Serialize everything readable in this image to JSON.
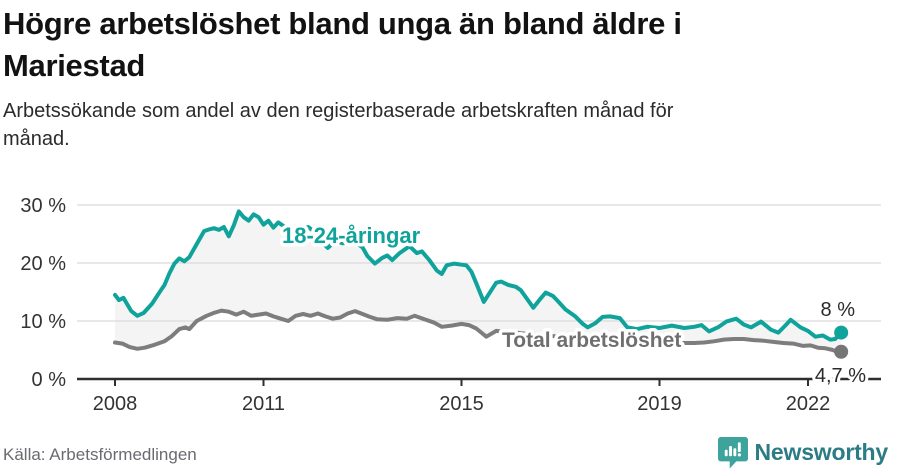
{
  "header": {
    "title": "Högre arbetslöshet bland unga än bland äldre i Mariestad",
    "title_lines": [
      "Högre arbetslöshet bland unga än bland äldre i",
      "Mariestad"
    ],
    "subtitle_lines": [
      "Arbetssökande som andel av den registerbaserade arbetskraften månad för",
      "månad."
    ]
  },
  "chart_data": {
    "type": "line",
    "title": "Högre arbetslöshet bland unga än bland äldre i Mariestad",
    "subtitle": "Arbetssökande som andel av den registerbaserade arbetskraften månad för månad.",
    "x_axis": {
      "ticks": [
        2008,
        2011,
        2015,
        2019,
        2022
      ],
      "tick_labels": [
        "2008",
        "2011",
        "2015",
        "2019",
        "2022"
      ],
      "range": [
        2008,
        2022.75
      ]
    },
    "y_axis": {
      "ticks": [
        0,
        10,
        20,
        30
      ],
      "tick_labels": [
        "0 %",
        "10 %",
        "20 %",
        "30 %"
      ],
      "range": [
        0,
        32
      ],
      "unit": "%",
      "grid": true
    },
    "band_fill": "#f4f4f4",
    "legend_position": "inline-labels",
    "series": [
      {
        "name": "18-24-åringar",
        "color": "#10a39b",
        "end_label": "8 %",
        "end_value": 8,
        "points": [
          [
            2008.0,
            14.5
          ],
          [
            2008.08,
            13.6
          ],
          [
            2008.17,
            14.0
          ],
          [
            2008.33,
            11.7
          ],
          [
            2008.45,
            10.9
          ],
          [
            2008.58,
            11.4
          ],
          [
            2008.75,
            13.0
          ],
          [
            2008.92,
            15.2
          ],
          [
            2009.0,
            16.2
          ],
          [
            2009.1,
            18.2
          ],
          [
            2009.2,
            19.9
          ],
          [
            2009.3,
            20.8
          ],
          [
            2009.4,
            20.3
          ],
          [
            2009.5,
            21.0
          ],
          [
            2009.6,
            22.5
          ],
          [
            2009.7,
            24.0
          ],
          [
            2009.8,
            25.5
          ],
          [
            2009.9,
            25.8
          ],
          [
            2010.0,
            26.0
          ],
          [
            2010.1,
            25.7
          ],
          [
            2010.2,
            26.2
          ],
          [
            2010.3,
            24.6
          ],
          [
            2010.4,
            26.5
          ],
          [
            2010.5,
            28.9
          ],
          [
            2010.6,
            27.9
          ],
          [
            2010.7,
            27.3
          ],
          [
            2010.8,
            28.4
          ],
          [
            2010.9,
            27.9
          ],
          [
            2011.0,
            26.6
          ],
          [
            2011.1,
            27.3
          ],
          [
            2011.2,
            26.1
          ],
          [
            2011.3,
            27.0
          ],
          [
            2011.4,
            26.4
          ],
          [
            2011.5,
            25.2
          ],
          [
            2011.6,
            25.8
          ],
          [
            2011.7,
            26.3
          ],
          [
            2011.8,
            25.9
          ],
          [
            2011.9,
            26.2
          ],
          [
            2012.0,
            25.6
          ],
          [
            2012.1,
            24.3
          ],
          [
            2012.3,
            22.6
          ],
          [
            2012.45,
            23.8
          ],
          [
            2012.6,
            23.4
          ],
          [
            2012.75,
            23.8
          ],
          [
            2012.9,
            23.3
          ],
          [
            2013.0,
            22.7
          ],
          [
            2013.1,
            21.2
          ],
          [
            2013.25,
            19.9
          ],
          [
            2013.4,
            20.9
          ],
          [
            2013.5,
            21.3
          ],
          [
            2013.6,
            20.5
          ],
          [
            2013.75,
            21.7
          ],
          [
            2013.95,
            22.9
          ],
          [
            2014.1,
            21.7
          ],
          [
            2014.2,
            22.0
          ],
          [
            2014.35,
            20.5
          ],
          [
            2014.5,
            18.7
          ],
          [
            2014.6,
            18.1
          ],
          [
            2014.7,
            19.6
          ],
          [
            2014.85,
            19.9
          ],
          [
            2015.0,
            19.7
          ],
          [
            2015.1,
            19.6
          ],
          [
            2015.2,
            18.5
          ],
          [
            2015.3,
            16.5
          ],
          [
            2015.45,
            13.3
          ],
          [
            2015.55,
            14.6
          ],
          [
            2015.7,
            16.6
          ],
          [
            2015.8,
            16.8
          ],
          [
            2015.95,
            16.2
          ],
          [
            2016.1,
            15.9
          ],
          [
            2016.2,
            15.3
          ],
          [
            2016.35,
            13.5
          ],
          [
            2016.45,
            12.3
          ],
          [
            2016.6,
            13.9
          ],
          [
            2016.7,
            14.9
          ],
          [
            2016.85,
            14.3
          ],
          [
            2016.95,
            13.4
          ],
          [
            2017.1,
            12.0
          ],
          [
            2017.3,
            10.8
          ],
          [
            2017.45,
            9.5
          ],
          [
            2017.55,
            8.9
          ],
          [
            2017.7,
            9.6
          ],
          [
            2017.85,
            10.7
          ],
          [
            2018.0,
            10.8
          ],
          [
            2018.2,
            10.5
          ],
          [
            2018.35,
            8.9
          ],
          [
            2018.55,
            8.6
          ],
          [
            2018.75,
            9.0
          ],
          [
            2019.0,
            8.8
          ],
          [
            2019.25,
            9.2
          ],
          [
            2019.5,
            8.8
          ],
          [
            2019.7,
            9.0
          ],
          [
            2019.85,
            9.3
          ],
          [
            2020.0,
            8.2
          ],
          [
            2020.2,
            9.0
          ],
          [
            2020.35,
            9.9
          ],
          [
            2020.55,
            10.4
          ],
          [
            2020.7,
            9.4
          ],
          [
            2020.85,
            8.9
          ],
          [
            2021.05,
            9.9
          ],
          [
            2021.25,
            8.5
          ],
          [
            2021.4,
            8.0
          ],
          [
            2021.55,
            9.3
          ],
          [
            2021.65,
            10.2
          ],
          [
            2021.85,
            8.9
          ],
          [
            2022.0,
            8.3
          ],
          [
            2022.15,
            7.3
          ],
          [
            2022.3,
            7.5
          ],
          [
            2022.45,
            6.8
          ],
          [
            2022.55,
            6.9
          ],
          [
            2022.67,
            8.0
          ]
        ]
      },
      {
        "name": "Total arbetslöshet",
        "color": "#7d7d7d",
        "label_color": "#6f6f6f",
        "end_label": "4,7 %",
        "end_value": 4.7,
        "points": [
          [
            2008.0,
            6.3
          ],
          [
            2008.15,
            6.1
          ],
          [
            2008.3,
            5.5
          ],
          [
            2008.45,
            5.2
          ],
          [
            2008.6,
            5.4
          ],
          [
            2008.8,
            5.9
          ],
          [
            2009.0,
            6.5
          ],
          [
            2009.15,
            7.4
          ],
          [
            2009.3,
            8.6
          ],
          [
            2009.42,
            8.9
          ],
          [
            2009.5,
            8.6
          ],
          [
            2009.65,
            10.0
          ],
          [
            2009.85,
            10.9
          ],
          [
            2010.0,
            11.4
          ],
          [
            2010.15,
            11.8
          ],
          [
            2010.3,
            11.6
          ],
          [
            2010.45,
            11.1
          ],
          [
            2010.6,
            11.6
          ],
          [
            2010.75,
            10.9
          ],
          [
            2010.9,
            11.1
          ],
          [
            2011.05,
            11.3
          ],
          [
            2011.2,
            10.8
          ],
          [
            2011.35,
            10.4
          ],
          [
            2011.5,
            10.0
          ],
          [
            2011.65,
            10.9
          ],
          [
            2011.8,
            11.2
          ],
          [
            2011.95,
            10.9
          ],
          [
            2012.1,
            11.3
          ],
          [
            2012.25,
            10.8
          ],
          [
            2012.4,
            10.4
          ],
          [
            2012.55,
            10.6
          ],
          [
            2012.7,
            11.3
          ],
          [
            2012.85,
            11.7
          ],
          [
            2013.0,
            11.2
          ],
          [
            2013.15,
            10.7
          ],
          [
            2013.3,
            10.3
          ],
          [
            2013.5,
            10.2
          ],
          [
            2013.7,
            10.5
          ],
          [
            2013.9,
            10.4
          ],
          [
            2014.05,
            10.9
          ],
          [
            2014.25,
            10.3
          ],
          [
            2014.45,
            9.7
          ],
          [
            2014.6,
            9.0
          ],
          [
            2014.8,
            9.2
          ],
          [
            2015.0,
            9.5
          ],
          [
            2015.15,
            9.3
          ],
          [
            2015.3,
            8.7
          ],
          [
            2015.5,
            7.3
          ],
          [
            2015.7,
            8.3
          ],
          [
            2015.9,
            8.1
          ],
          [
            2016.1,
            8.0
          ],
          [
            2016.4,
            7.7
          ],
          [
            2016.7,
            7.5
          ],
          [
            2017.0,
            7.3
          ],
          [
            2017.3,
            7.1
          ],
          [
            2017.6,
            6.9
          ],
          [
            2017.9,
            6.8
          ],
          [
            2018.2,
            6.7
          ],
          [
            2018.5,
            6.6
          ],
          [
            2018.8,
            6.5
          ],
          [
            2019.1,
            6.4
          ],
          [
            2019.4,
            6.2
          ],
          [
            2019.7,
            6.2
          ],
          [
            2019.9,
            6.3
          ],
          [
            2020.1,
            6.5
          ],
          [
            2020.3,
            6.8
          ],
          [
            2020.5,
            6.9
          ],
          [
            2020.7,
            6.9
          ],
          [
            2020.9,
            6.7
          ],
          [
            2021.1,
            6.6
          ],
          [
            2021.3,
            6.4
          ],
          [
            2021.5,
            6.2
          ],
          [
            2021.7,
            6.1
          ],
          [
            2021.9,
            5.7
          ],
          [
            2022.05,
            5.8
          ],
          [
            2022.2,
            5.4
          ],
          [
            2022.35,
            5.3
          ],
          [
            2022.5,
            5.0
          ],
          [
            2022.6,
            4.6
          ],
          [
            2022.67,
            4.7
          ]
        ]
      }
    ]
  },
  "footer": {
    "source": "Källa: Arbetsförmedlingen",
    "brand": "Newsworthy"
  },
  "colors": {
    "accent_teal": "#10a39b",
    "gray_line": "#7d7d7d",
    "grid": "#d9d9d9",
    "axis": "#2e2e2e",
    "logo_icon": "#3ea39d",
    "logo_text": "#2c7c85"
  }
}
